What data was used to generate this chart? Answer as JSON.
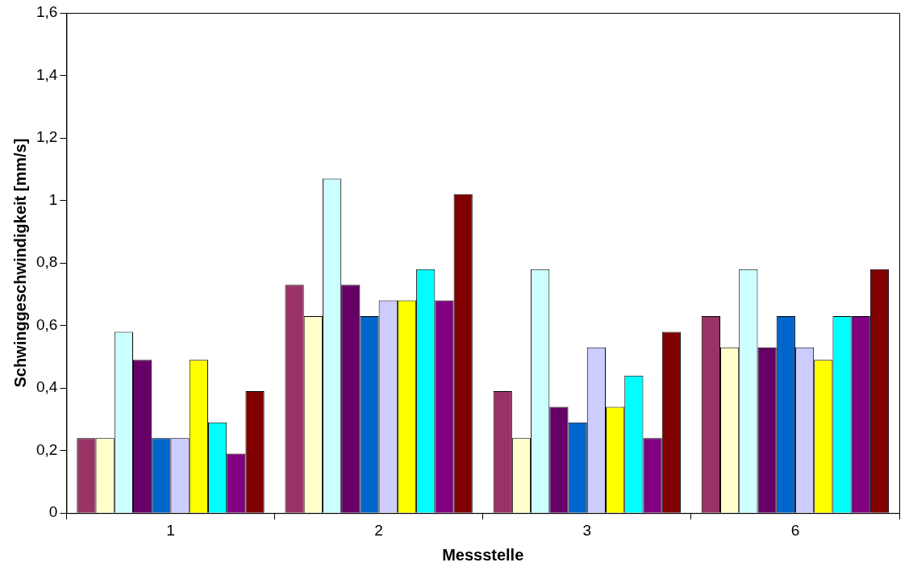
{
  "chart_data": {
    "type": "bar",
    "xlabel": "Messstelle",
    "ylabel": "Schwinggeschwindigkeit [mm/s]",
    "categories": [
      "1",
      "2",
      "3",
      "6"
    ],
    "series": [
      {
        "color": "#993366",
        "values": [
          0.24,
          0.73,
          0.39,
          0.63
        ]
      },
      {
        "color": "#ffffcc",
        "values": [
          0.24,
          0.63,
          0.24,
          0.53
        ]
      },
      {
        "color": "#ccffff",
        "values": [
          0.58,
          1.07,
          0.78,
          0.78
        ]
      },
      {
        "color": "#660066",
        "values": [
          0.49,
          0.73,
          0.34,
          0.53
        ]
      },
      {
        "color": "#0066cc",
        "values": [
          0.24,
          0.63,
          0.29,
          0.63
        ]
      },
      {
        "color": "#ccccff",
        "values": [
          0.24,
          0.68,
          0.53,
          0.53
        ]
      },
      {
        "color": "#ffff00",
        "values": [
          0.49,
          0.68,
          0.34,
          0.49
        ]
      },
      {
        "color": "#00ffff",
        "values": [
          0.29,
          0.78,
          0.44,
          0.63
        ]
      },
      {
        "color": "#800080",
        "values": [
          0.19,
          0.68,
          0.24,
          0.63
        ]
      },
      {
        "color": "#800000",
        "values": [
          0.39,
          1.02,
          0.58,
          0.78
        ]
      }
    ],
    "ylim": [
      0,
      1.6
    ],
    "yticks": [
      0,
      {
        "value": 0.2,
        "label": "0,2"
      },
      {
        "value": 0.4,
        "label": "0,4"
      },
      {
        "value": 0.6,
        "label": "0,6"
      },
      {
        "value": 0.8,
        "label": "0,8"
      },
      1,
      {
        "value": 1.2,
        "label": "1,2"
      },
      {
        "value": 1.4,
        "label": "1,4"
      },
      {
        "value": 1.6,
        "label": "1,6"
      }
    ],
    "grid": false,
    "legend": false
  }
}
